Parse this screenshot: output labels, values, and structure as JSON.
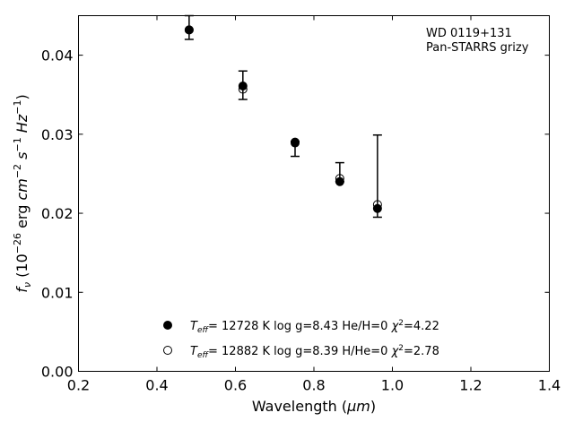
{
  "chart_data": {
    "type": "scatter",
    "title": "",
    "xlabel": "Wavelength (",
    "xlabel_unit": "μm",
    "xlabel_close": ")",
    "ylabel_parts": {
      "f": "f",
      "nu": "ν",
      "open": " (10",
      "exp26": "−26",
      "erg": " erg ",
      "cm": "cm",
      "m2": "−2",
      "s": "s",
      "m1a": "−1",
      "Hz": "Hz",
      "m1b": "−1",
      "close": ")"
    },
    "xlim": [
      0.2,
      1.4
    ],
    "ylim": [
      0.0,
      0.045
    ],
    "xticks": [
      "0.2",
      "0.4",
      "0.6",
      "0.8",
      "1.0",
      "1.2",
      "1.4"
    ],
    "xtick_values": [
      0.2,
      0.4,
      0.6,
      0.8,
      1.0,
      1.2,
      1.4
    ],
    "yticks": [
      "0.00",
      "0.01",
      "0.02",
      "0.03",
      "0.04"
    ],
    "ytick_values": [
      0.0,
      0.01,
      0.02,
      0.03,
      0.04
    ],
    "grid": false,
    "annotation": [
      "WD 0119+131",
      "Pan-STARRS grizy"
    ],
    "observed": {
      "x": [
        0.482,
        0.619,
        0.752,
        0.866,
        0.962
      ],
      "y": [
        0.0435,
        0.0362,
        0.0287,
        0.0247,
        0.0247
      ],
      "yerr_low": [
        0.042,
        0.0344,
        0.0272,
        0.024,
        0.0195
      ],
      "yerr_high": [
        0.045,
        0.038,
        0.0291,
        0.0264,
        0.0299
      ]
    },
    "series": [
      {
        "name_parts": {
          "T": "T",
          "eff": "eff",
          "rest": "= 12728 K  log g=8.43  He/H=0  ",
          "chi": "χ",
          "two": "2",
          "val": "=4.22"
        },
        "marker": "filled-circle",
        "x": [
          0.482,
          0.619,
          0.752,
          0.866,
          0.962
        ],
        "y": [
          0.0432,
          0.0361,
          0.029,
          0.024,
          0.0206
        ]
      },
      {
        "name_parts": {
          "T": "T",
          "eff": "eff",
          "rest": "= 12882 K  log g=8.39  H/He=0  ",
          "chi": "χ",
          "two": "2",
          "val": "=2.78"
        },
        "marker": "open-circle",
        "x": [
          0.482,
          0.619,
          0.752,
          0.866,
          0.962
        ],
        "y": [
          0.0432,
          0.0357,
          0.0289,
          0.0244,
          0.0211
        ]
      }
    ],
    "legend_location": "lower-center"
  }
}
